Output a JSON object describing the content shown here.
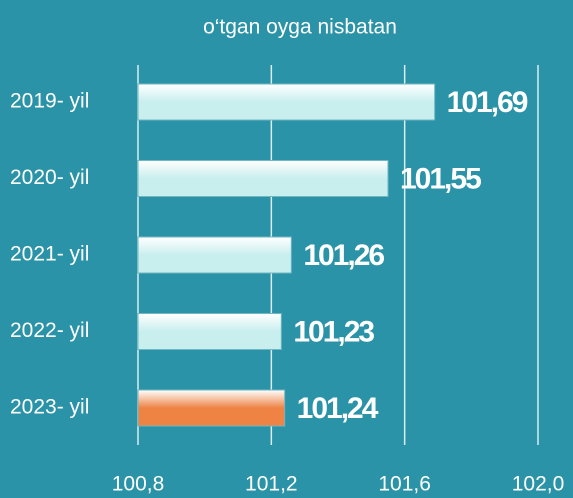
{
  "chart_data": {
    "type": "barh",
    "title": "o‘tgan oyga nisbatan",
    "categories": [
      "2019- yil",
      "2020- yil",
      "2021- yil",
      "2022- yil",
      "2023- yil"
    ],
    "values": [
      101.69,
      101.55,
      101.26,
      101.23,
      101.24
    ],
    "value_labels": [
      "101,69",
      "101,55",
      "101,26",
      "101,23",
      "101,24"
    ],
    "colors": [
      "#c9eeee",
      "#c9eeee",
      "#c9eeee",
      "#c9eeee",
      "#ee8344"
    ],
    "xlim": [
      100.8,
      102.0
    ],
    "xticks": [
      {
        "value": 100.8,
        "label": "100,8"
      },
      {
        "value": 101.2,
        "label": "101,2"
      },
      {
        "value": 101.6,
        "label": "101,6"
      },
      {
        "value": 102.0,
        "label": "102,0"
      }
    ],
    "grid": true
  }
}
